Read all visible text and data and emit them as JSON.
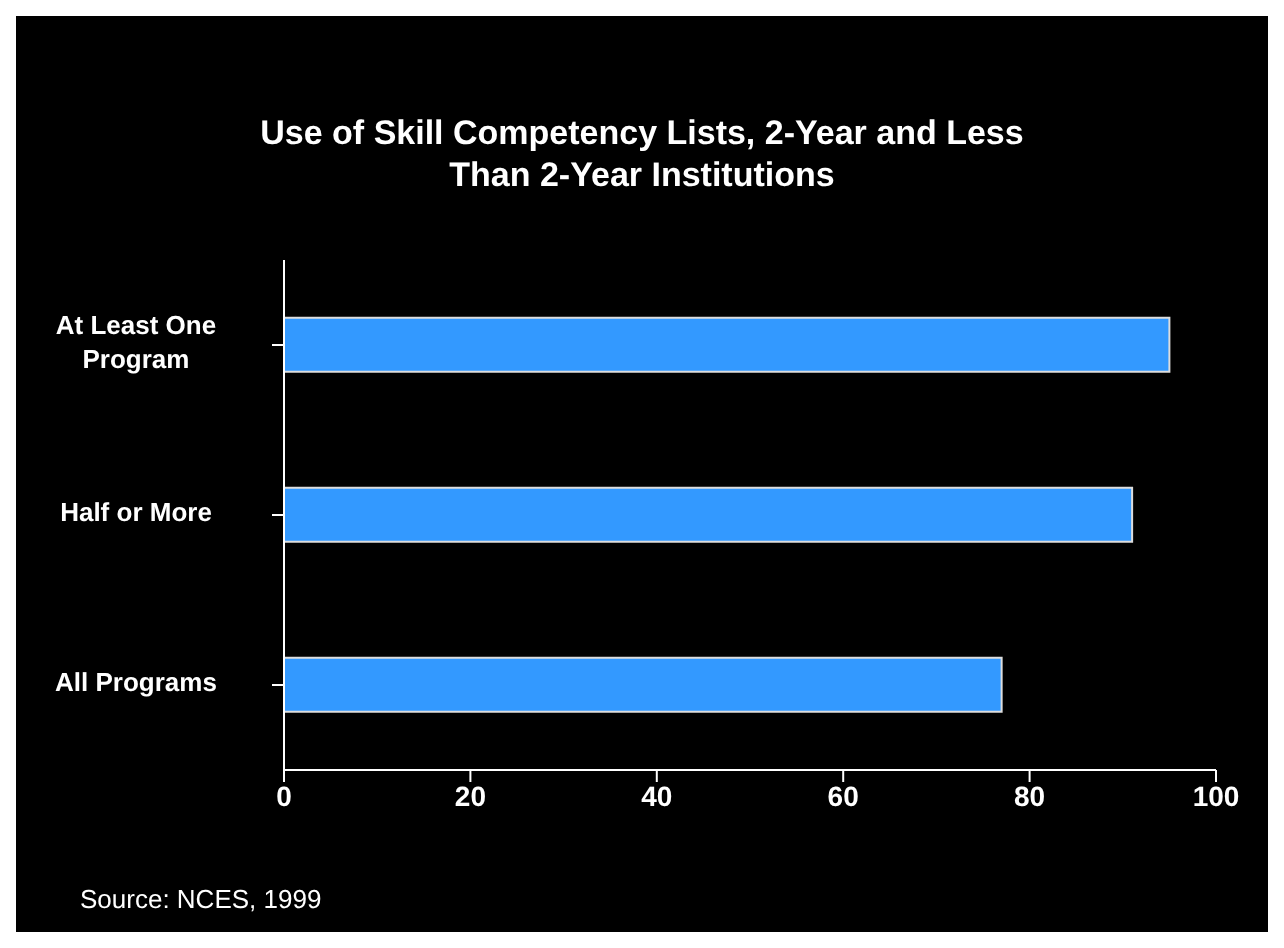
{
  "chart_data": {
    "type": "bar",
    "orientation": "horizontal",
    "title": "Use of Skill Competency Lists, 2-Year and Less Than 2-Year Institutions",
    "categories": [
      "At Least One Program",
      "Half or More",
      "All Programs"
    ],
    "values": [
      95,
      91,
      77
    ],
    "color": "#3399ff",
    "xlim": [
      0,
      100
    ],
    "xticks": [
      0,
      20,
      40,
      60,
      80,
      100
    ],
    "grid": false,
    "legend": false,
    "annotations": [
      "Source:  NCES, 1999"
    ]
  }
}
